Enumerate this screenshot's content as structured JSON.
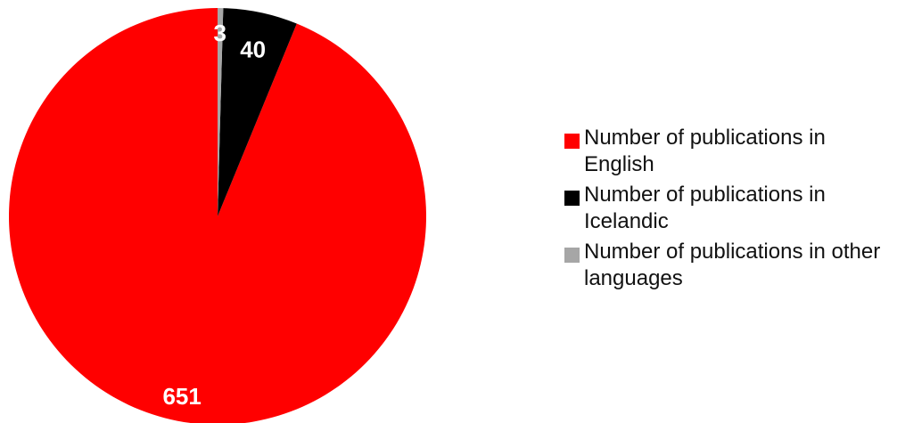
{
  "chart_data": {
    "type": "pie",
    "title": "",
    "categories": [
      "Number of publications in English",
      "Number of publications in Icelandic",
      "Number of publications in other languages"
    ],
    "values": [
      651,
      40,
      3
    ],
    "value_labels": [
      "651",
      "40",
      "3"
    ],
    "colors": [
      "#ff0000",
      "#000000",
      "#a6a6a6"
    ],
    "start_angle": "12 o'clock",
    "direction": "counterclockwise",
    "legend_position": "right"
  }
}
